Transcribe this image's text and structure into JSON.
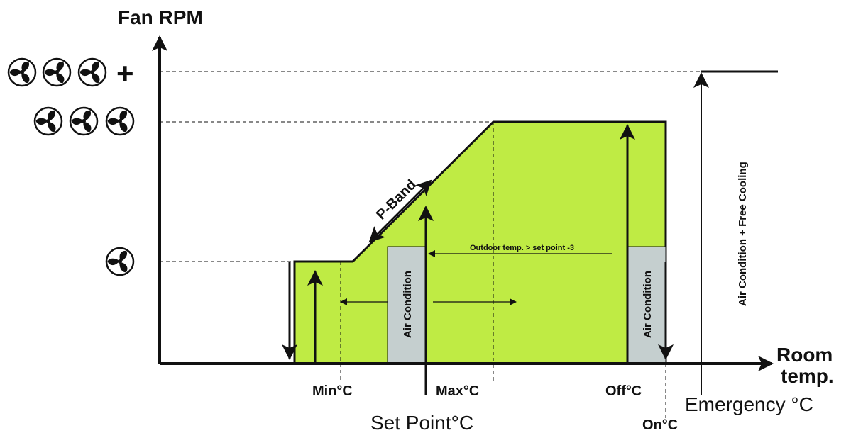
{
  "diagram": {
    "y_axis_label": "Fan RPM",
    "x_axis_label_line1": "Room",
    "x_axis_label_line2": "temp.",
    "fan_levels": [
      {
        "name": "level-1",
        "fans": 1,
        "plus": false
      },
      {
        "name": "level-3",
        "fans": 3,
        "plus": false
      },
      {
        "name": "level-3-plus",
        "fans": 3,
        "plus": true
      }
    ],
    "plus_symbol": "+",
    "markers": {
      "min": "Min°C",
      "set_point": "Set Point°C",
      "max": "Max°C",
      "off": "Off°C",
      "on": "On°C",
      "emergency": "Emergency °C"
    },
    "annotations": {
      "p_band": "P-Band",
      "outdoor": "Outdoor temp. > set point -3",
      "air_condition": "Air Condition",
      "air_free_cooling": "Air Condition + Free Cooling"
    },
    "colors": {
      "fill": "#bfeb44",
      "ac_box": "#c5cfcf",
      "line": "#111111"
    }
  }
}
